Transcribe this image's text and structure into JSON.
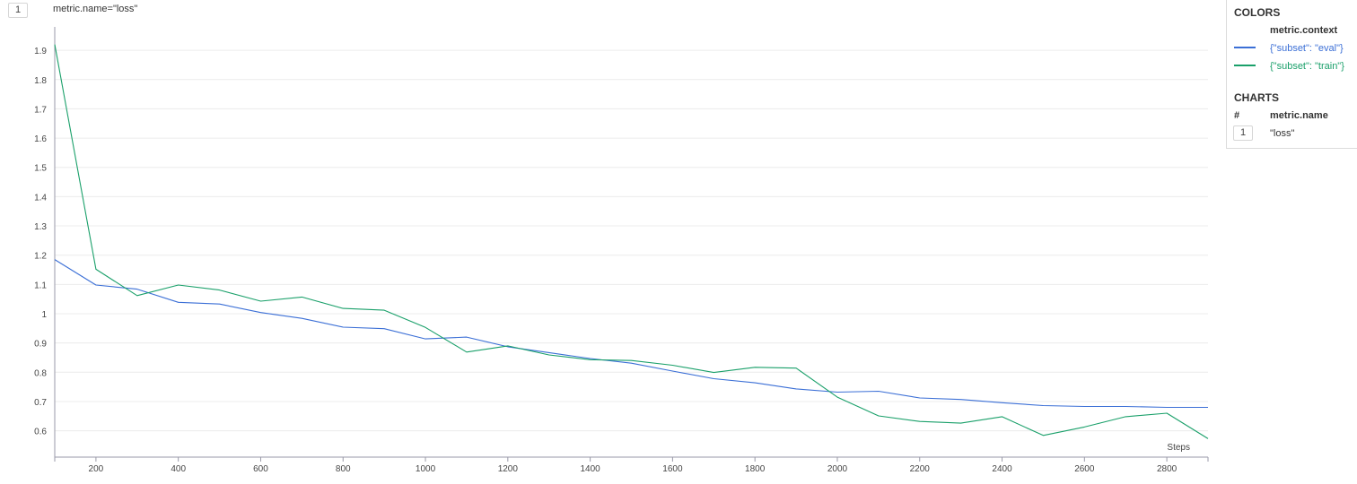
{
  "header": {
    "chart_index": "1",
    "chart_title": "metric.name=\"loss\""
  },
  "legend": {
    "colors_heading": "COLORS",
    "color_column": "metric.context",
    "entries": [
      {
        "label": "{\"subset\": \"eval\"}",
        "color": "#3b6fd6"
      },
      {
        "label": "{\"subset\": \"train\"}",
        "color": "#1aa06a"
      }
    ],
    "charts_heading": "CHARTS",
    "charts_index_column": "#",
    "charts_name_column": "metric.name",
    "charts_rows": [
      {
        "index": "1",
        "name": "\"loss\""
      }
    ]
  },
  "chart_data": {
    "type": "line",
    "title": "metric.name=\"loss\"",
    "xlabel": "Steps",
    "ylabel": "",
    "xlim": [
      100,
      2900
    ],
    "ylim": [
      0.51,
      1.98
    ],
    "grid": true,
    "legend_position": "right",
    "x_ticks": [
      200,
      400,
      600,
      800,
      1000,
      1200,
      1400,
      1600,
      1800,
      2000,
      2200,
      2400,
      2600,
      2800
    ],
    "x_tick_labels": [
      "200",
      "400",
      "600",
      "800",
      "1000",
      "1200",
      "1400",
      "1600",
      "1800",
      "2000",
      "2200",
      "2400",
      "2600",
      "2800"
    ],
    "y_ticks": [
      0.6,
      0.7,
      0.8,
      0.9,
      1.0,
      1.1,
      1.2,
      1.3,
      1.4,
      1.5,
      1.6,
      1.7,
      1.8,
      1.9
    ],
    "y_tick_labels": [
      "0.6",
      "0.7",
      "0.8",
      "0.9",
      "1",
      "1.1",
      "1.2",
      "1.3",
      "1.4",
      "1.5",
      "1.6",
      "1.7",
      "1.8",
      "1.9"
    ],
    "x": [
      100,
      200,
      300,
      400,
      500,
      600,
      700,
      800,
      900,
      1000,
      1100,
      1200,
      1300,
      1400,
      1500,
      1600,
      1700,
      1800,
      1900,
      2000,
      2100,
      2200,
      2300,
      2400,
      2500,
      2600,
      2700,
      2800,
      2900
    ],
    "series": [
      {
        "name": "{\"subset\": \"eval\"}",
        "color": "#3b6fd6",
        "values": [
          1.185,
          1.098,
          1.084,
          1.039,
          1.033,
          1.004,
          0.984,
          0.954,
          0.949,
          0.914,
          0.92,
          0.887,
          0.867,
          0.847,
          0.831,
          0.804,
          0.778,
          0.764,
          0.743,
          0.732,
          0.735,
          0.712,
          0.707,
          0.696,
          0.686,
          0.683,
          0.683,
          0.68,
          0.68
        ]
      },
      {
        "name": "{\"subset\": \"train\"}",
        "color": "#1aa06a",
        "values": [
          1.92,
          1.152,
          1.062,
          1.098,
          1.081,
          1.043,
          1.057,
          1.018,
          1.012,
          0.953,
          0.869,
          0.89,
          0.859,
          0.843,
          0.84,
          0.824,
          0.799,
          0.817,
          0.814,
          0.715,
          0.651,
          0.632,
          0.626,
          0.648,
          0.584,
          0.613,
          0.648,
          0.66,
          0.573
        ]
      }
    ]
  }
}
